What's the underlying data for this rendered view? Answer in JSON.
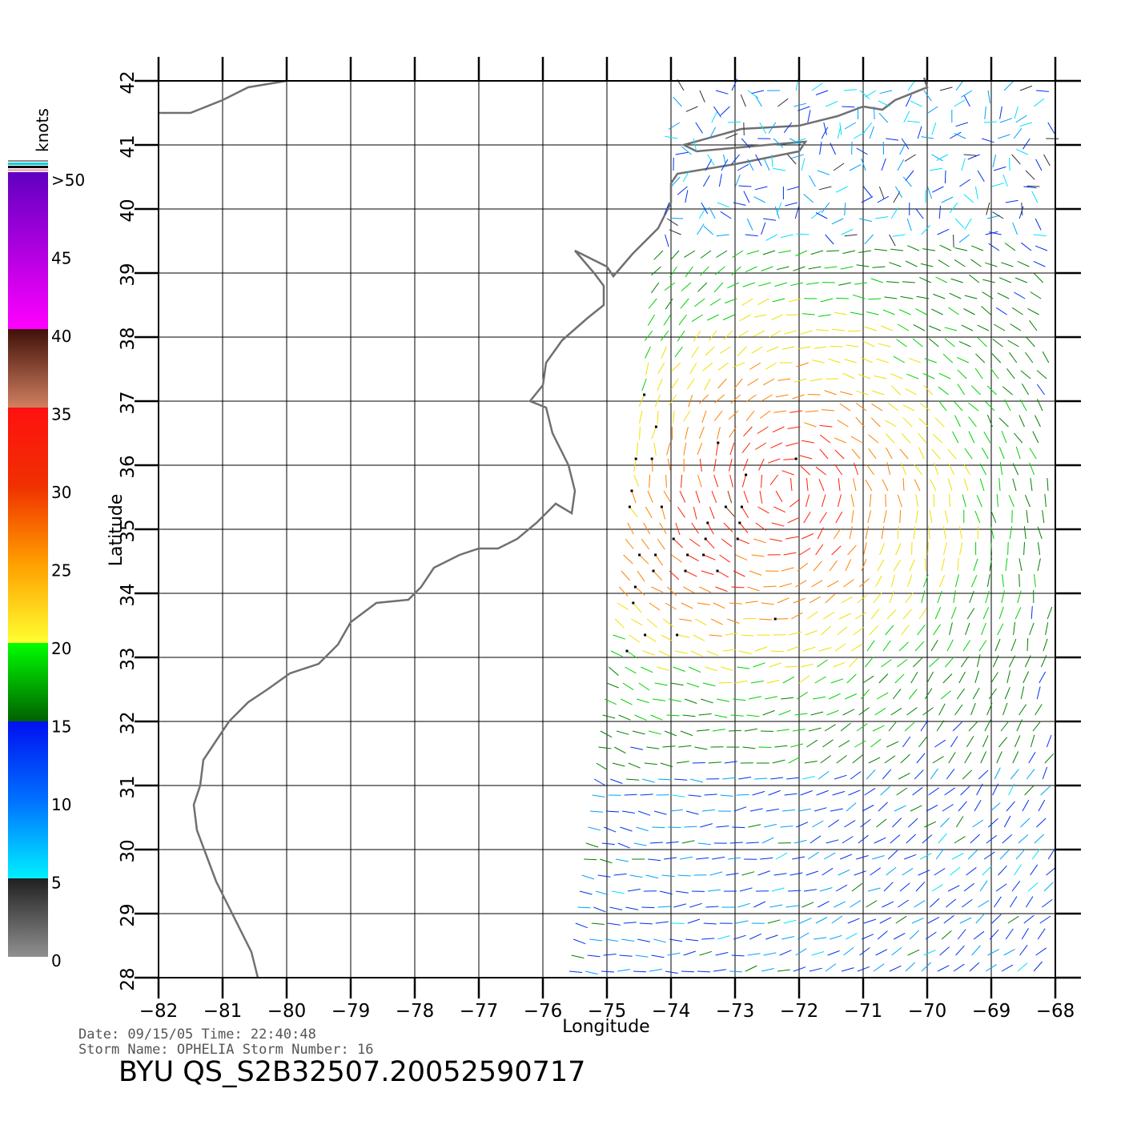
{
  "map": {
    "lon_range": [
      -82,
      -68
    ],
    "lat_range": [
      28,
      42
    ],
    "lon_ticks": [
      "−82",
      "−81",
      "−80",
      "−79",
      "−78",
      "−77",
      "−76",
      "−75",
      "−74",
      "−73",
      "−72",
      "−71",
      "−70",
      "−69",
      "−68"
    ],
    "lat_ticks": [
      "28",
      "29",
      "30",
      "31",
      "32",
      "33",
      "34",
      "35",
      "36",
      "37",
      "38",
      "39",
      "40",
      "41",
      "42"
    ],
    "xlabel": "Longitude",
    "ylabel": "Latitude",
    "coast_color": "#707070",
    "grid": true
  },
  "colorbar": {
    "unit": "knots",
    "labels": [
      ">50",
      "45",
      "40",
      "35",
      "30",
      "25",
      "20",
      "15",
      "10",
      "5",
      "0"
    ],
    "stops": [
      {
        "speed": 0,
        "color": "#909090"
      },
      {
        "speed": 5,
        "color": "#202020"
      },
      {
        "speed": 5,
        "color": "#00f0ff"
      },
      {
        "speed": 10,
        "color": "#0070ff"
      },
      {
        "speed": 15,
        "color": "#0010f0"
      },
      {
        "speed": 15,
        "color": "#006000"
      },
      {
        "speed": 20,
        "color": "#00ff00"
      },
      {
        "speed": 20,
        "color": "#ffff30"
      },
      {
        "speed": 25,
        "color": "#ffa000"
      },
      {
        "speed": 30,
        "color": "#f03000"
      },
      {
        "speed": 35,
        "color": "#ff1010"
      },
      {
        "speed": 35,
        "color": "#d08060"
      },
      {
        "speed": 40,
        "color": "#401008"
      },
      {
        "speed": 40,
        "color": "#ff00ff"
      },
      {
        "speed": 50,
        "color": "#6000c0"
      }
    ]
  },
  "footer": {
    "date_line": "Date: 09/15/05   Time: 22:40:48",
    "storm_line": "Storm  Name:  OPHELIA    Storm  Number:  16",
    "product": "BYU  QS_S2B32507.20052590717"
  }
}
